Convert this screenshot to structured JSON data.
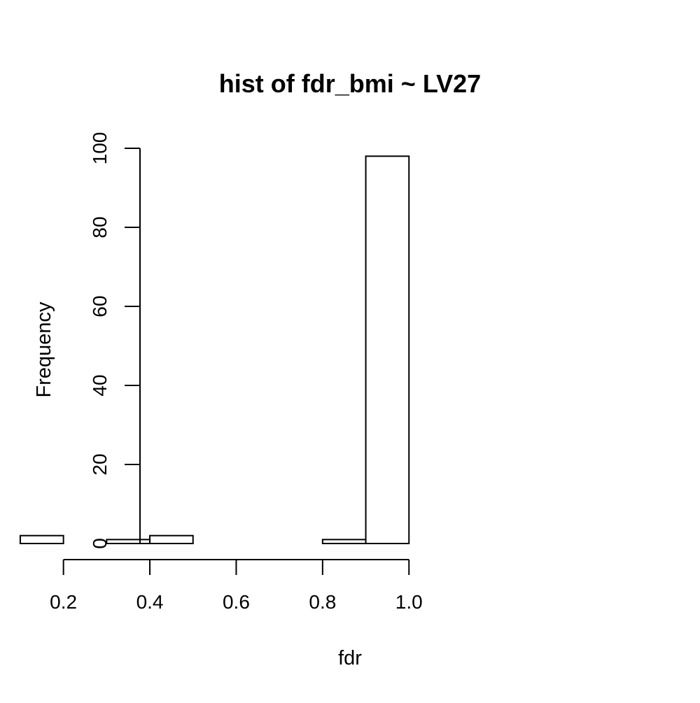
{
  "chart_data": {
    "type": "bar",
    "title": "hist of fdr_bmi ~ LV27",
    "xlabel": "fdr",
    "ylabel": "Frequency",
    "bins": [
      {
        "x0": 0.1,
        "x1": 0.2,
        "count": 2
      },
      {
        "x0": 0.2,
        "x1": 0.3,
        "count": 0
      },
      {
        "x0": 0.3,
        "x1": 0.4,
        "count": 1
      },
      {
        "x0": 0.4,
        "x1": 0.5,
        "count": 2
      },
      {
        "x0": 0.5,
        "x1": 0.6,
        "count": 0
      },
      {
        "x0": 0.6,
        "x1": 0.7,
        "count": 0
      },
      {
        "x0": 0.7,
        "x1": 0.8,
        "count": 0
      },
      {
        "x0": 0.8,
        "x1": 0.9,
        "count": 1
      },
      {
        "x0": 0.9,
        "x1": 1.0,
        "count": 98
      }
    ],
    "x_ticks": [
      0.2,
      0.4,
      0.6,
      0.8,
      1.0
    ],
    "x_tick_labels": [
      "0.2",
      "0.4",
      "0.6",
      "0.8",
      "1.0"
    ],
    "y_ticks": [
      0,
      20,
      40,
      60,
      80,
      100
    ],
    "y_tick_labels": [
      "0",
      "20",
      "40",
      "60",
      "80",
      "100"
    ],
    "xlim": [
      0.1,
      1.0
    ],
    "ylim": [
      0,
      100
    ],
    "grid": false,
    "legend": "none"
  }
}
